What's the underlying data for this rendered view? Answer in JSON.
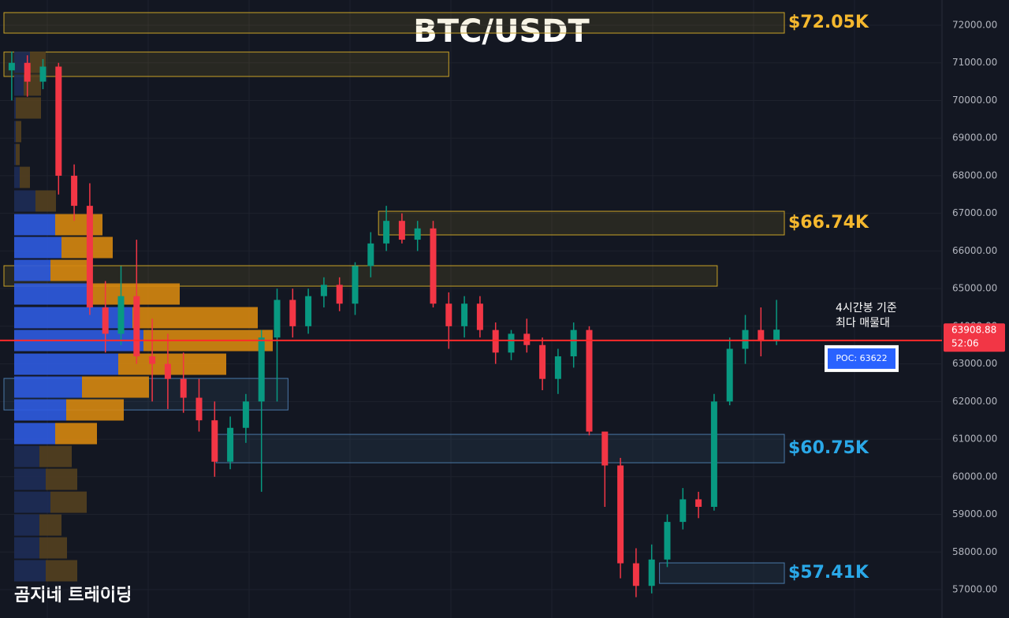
{
  "chart_data": {
    "type": "candlestick",
    "title": "BTC/USDT",
    "watermark": "곰지네 트레이딩",
    "ylim": [
      56246,
      72670
    ],
    "yticks": [
      {
        "value": 57000,
        "label": "57000.00"
      },
      {
        "value": 58000,
        "label": "58000.00"
      },
      {
        "value": 59000,
        "label": "59000.00"
      },
      {
        "value": 60000,
        "label": "60000.00"
      },
      {
        "value": 61000,
        "label": "61000.00"
      },
      {
        "value": 62000,
        "label": "62000.00"
      },
      {
        "value": 63000,
        "label": "63000.00"
      },
      {
        "value": 64000,
        "label": "64000.00"
      },
      {
        "value": 65000,
        "label": "65000.00"
      },
      {
        "value": 66000,
        "label": "66000.00"
      },
      {
        "value": 67000,
        "label": "67000.00"
      },
      {
        "value": 68000,
        "label": "68000.00"
      },
      {
        "value": 69000,
        "label": "69000.00"
      },
      {
        "value": 70000,
        "label": "70000.00"
      },
      {
        "value": 71000,
        "label": "71000.00"
      },
      {
        "value": 72000,
        "label": "72000.00"
      }
    ],
    "grid": true,
    "up_color": "#089981",
    "down_color": "#f23645",
    "open": [
      70800,
      71000,
      70500,
      70900,
      68000,
      67200,
      64500,
      63800,
      64800,
      63200,
      63000,
      62600,
      62100,
      61500,
      60400,
      61300,
      62000,
      63700,
      64700,
      64000,
      64800,
      65100,
      64600,
      65600,
      66200,
      66800,
      66300,
      66600,
      64600,
      64000,
      64600,
      63900,
      63300,
      63800,
      63500,
      62600,
      63200,
      63900,
      61200,
      60300,
      57700,
      57100,
      57800,
      58800,
      59400,
      59200,
      62000,
      63400,
      63900,
      63600
    ],
    "high": [
      71300,
      71200,
      71100,
      71000,
      68300,
      67800,
      65200,
      65600,
      66300,
      64200,
      63800,
      63300,
      62600,
      62000,
      61600,
      62200,
      63900,
      65000,
      65000,
      65000,
      65300,
      65300,
      65700,
      66500,
      67200,
      67000,
      66800,
      66800,
      64900,
      64800,
      64800,
      64100,
      63900,
      64200,
      63700,
      63400,
      64100,
      64000,
      61200,
      60500,
      58100,
      58200,
      59000,
      59700,
      59600,
      62200,
      63700,
      64300,
      64500,
      64700
    ],
    "low": [
      70000,
      70100,
      70300,
      67500,
      66800,
      64300,
      63300,
      63500,
      63000,
      62000,
      61800,
      61700,
      61200,
      60000,
      60200,
      60900,
      59600,
      62000,
      63700,
      63800,
      64500,
      64400,
      64300,
      65300,
      66000,
      66200,
      66000,
      64500,
      63400,
      63700,
      63700,
      63000,
      63100,
      63300,
      62300,
      62200,
      62900,
      61100,
      59200,
      57300,
      56800,
      56900,
      57600,
      58600,
      58900,
      59100,
      61900,
      63000,
      63200,
      63500
    ],
    "close": [
      71000,
      70500,
      70900,
      68000,
      67200,
      64500,
      63800,
      64800,
      63200,
      63000,
      62600,
      62100,
      61500,
      60400,
      61300,
      62000,
      63700,
      64700,
      64000,
      64800,
      65100,
      64600,
      65600,
      66200,
      66800,
      66300,
      66600,
      64600,
      64000,
      64600,
      63900,
      63300,
      63800,
      63500,
      62600,
      63200,
      63900,
      61200,
      60300,
      57700,
      57100,
      57800,
      58800,
      59400,
      59200,
      62000,
      63400,
      63900,
      63600,
      63908.88
    ],
    "profile": {
      "levels": [
        71015,
        70408,
        69800,
        69172,
        68564,
        67956,
        67328,
        66699,
        66092,
        65484,
        64856,
        64227,
        63620,
        62991,
        62383,
        61776,
        61147,
        60539,
        59932,
        59324,
        58717,
        58109,
        57502
      ],
      "value_area": [
        61147,
        66699
      ],
      "series": [
        {
          "color": "#2f5be0",
          "dim_color": "#1e2c57",
          "values": [
            20,
            12,
            2,
            2,
            2,
            7,
            27,
            52,
            60,
            46,
            97,
            150,
            164,
            132,
            86,
            66,
            52,
            32,
            40,
            46,
            32,
            32,
            40
          ]
        },
        {
          "color": "#d6870f",
          "dim_color": "#54401f",
          "values": [
            20,
            22,
            32,
            7,
            5,
            13,
            26,
            60,
            65,
            51,
            113,
            159,
            164,
            137,
            85,
            73,
            53,
            41,
            40,
            46,
            28,
            35,
            40
          ]
        }
      ]
    },
    "zones": [
      {
        "top": 72335,
        "bottom": 71790,
        "from": 0,
        "to": 50,
        "color": "#c9a227",
        "label": "$72.05K"
      },
      {
        "top": 71287,
        "bottom": 70638,
        "from": 0,
        "to": 28.5,
        "color": "#c9a227"
      },
      {
        "top": 67055,
        "bottom": 66427,
        "from": 24,
        "to": 50,
        "color": "#c9a227",
        "label": "$66.74K"
      },
      {
        "top": 65609,
        "bottom": 65065,
        "from": 0,
        "to": 45.7,
        "color": "#c9a227"
      },
      {
        "top": 62613,
        "bottom": 61775,
        "from": 0,
        "to": 18.2,
        "color": "#4a78a8"
      },
      {
        "top": 61126,
        "bottom": 60372,
        "from": 13.6,
        "to": 50,
        "color": "#4a78a8",
        "label": "$60.75K"
      },
      {
        "top": 57711,
        "bottom": 57166,
        "from": 42,
        "to": 50,
        "color": "#4a78a8",
        "label": "$57.41K"
      }
    ],
    "poc": {
      "value": 63622,
      "label": "POC: 63622"
    },
    "annotations": [
      "4시간봉 기준",
      "최다 매물대"
    ],
    "last_price": 63908.88,
    "countdown": "52:06"
  }
}
